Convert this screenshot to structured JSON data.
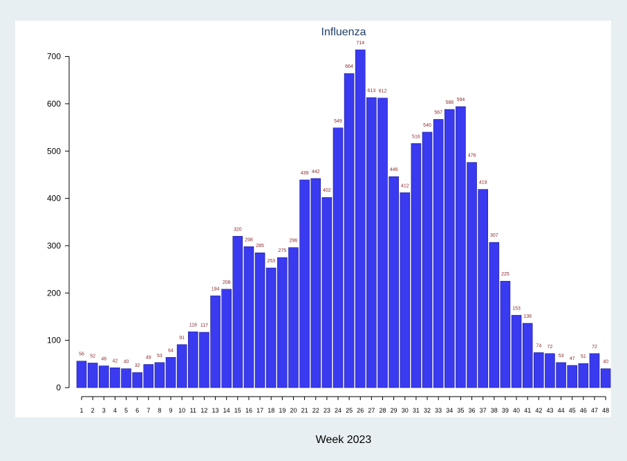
{
  "colors": {
    "outer_background": "#e8eff3",
    "plot_background": "#ffffff",
    "bar_fill": "#3a3af0",
    "bar_stroke": "#1a1a8a",
    "data_label": "#8b2a2a",
    "title": "#1f3d6b",
    "axis": "#000000"
  },
  "chart_data": {
    "type": "bar",
    "title": "Influenza",
    "xlabel": "Week 2023",
    "ylabel": "",
    "ylim": [
      0,
      720
    ],
    "yticks": [
      0,
      100,
      200,
      300,
      400,
      500,
      600,
      700
    ],
    "grid": false,
    "data_labels": true,
    "categories": [
      "1",
      "2",
      "3",
      "4",
      "5",
      "6",
      "7",
      "8",
      "9",
      "10",
      "11",
      "12",
      "13",
      "14",
      "15",
      "16",
      "17",
      "18",
      "19",
      "20",
      "21",
      "22",
      "23",
      "24",
      "25",
      "26",
      "27",
      "28",
      "29",
      "30",
      "31",
      "32",
      "33",
      "34",
      "35",
      "36",
      "37",
      "38",
      "39",
      "40",
      "41",
      "42",
      "43",
      "44",
      "45",
      "46",
      "47",
      "48"
    ],
    "values": [
      56,
      52,
      46,
      42,
      40,
      32,
      49,
      53,
      64,
      91,
      118,
      117,
      194,
      208,
      320,
      298,
      285,
      253,
      275,
      296,
      439,
      442,
      402,
      549,
      664,
      714,
      613,
      612,
      446,
      412,
      516,
      540,
      567,
      588,
      594,
      476,
      419,
      307,
      225,
      153,
      136,
      74,
      72,
      53,
      47,
      51,
      72,
      40
    ]
  }
}
